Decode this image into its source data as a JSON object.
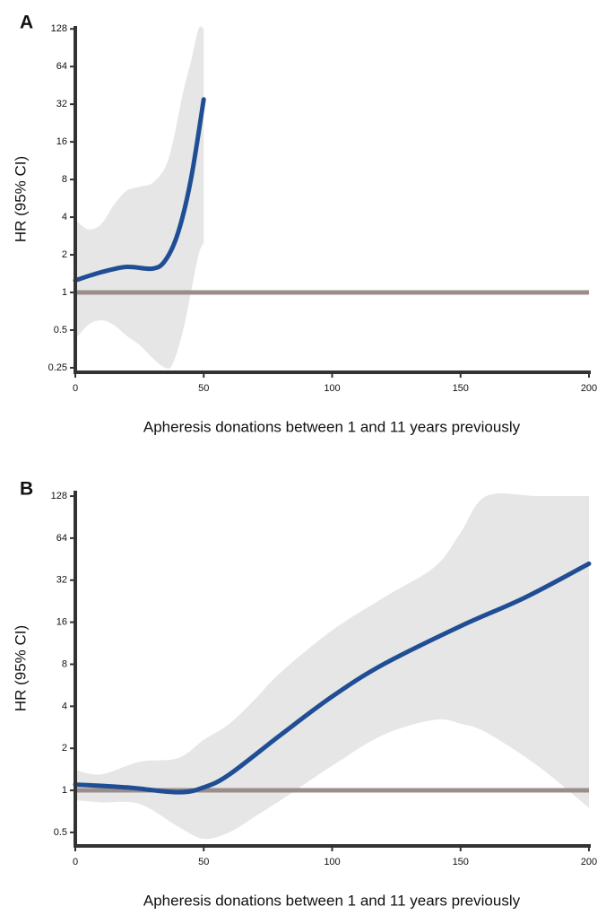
{
  "chart_data": [
    {
      "type": "line",
      "panel": "A",
      "x_label": "Apheresis donations between 1 and 11 years previously",
      "y_label": "HR (95% CI)",
      "log_y": true,
      "color": "#1f4e94",
      "band_color": "#e6e6e6",
      "reference_line": 1,
      "reference_color": "#9b8d8b",
      "xlim": [
        0,
        200
      ],
      "xticks": [
        0,
        50,
        100,
        150,
        200
      ],
      "ylim": [
        0.23,
        135
      ],
      "yticks": [
        0.25,
        0.5,
        1,
        2,
        4,
        8,
        16,
        32,
        64,
        128
      ],
      "x": [
        0,
        10,
        20,
        30,
        35,
        40,
        45,
        50
      ],
      "values": [
        1.25,
        1.45,
        1.6,
        1.55,
        1.8,
        3,
        8,
        35
      ],
      "ci": {
        "x": [
          0,
          5,
          10,
          15,
          20,
          25,
          30,
          35,
          38,
          42,
          45,
          48,
          50
        ],
        "lower": [
          0.42,
          0.55,
          0.6,
          0.55,
          0.45,
          0.38,
          0.3,
          0.25,
          0.27,
          0.5,
          1,
          2,
          2.5
        ],
        "upper": [
          3.8,
          3.2,
          3.5,
          5,
          6.5,
          7,
          7.5,
          10,
          16,
          40,
          70,
          128,
          128
        ]
      }
    },
    {
      "type": "line",
      "panel": "B",
      "x_label": "Apheresis donations between 1 and 11 years previously",
      "y_label": "HR (95% CI)",
      "log_y": true,
      "color": "#1f4e94",
      "band_color": "#e6e6e6",
      "reference_line": 1,
      "reference_color": "#9b8d8b",
      "xlim": [
        0,
        200
      ],
      "xticks": [
        0,
        50,
        100,
        150,
        200
      ],
      "ylim": [
        0.4,
        140
      ],
      "yticks": [
        0.5,
        1,
        2,
        4,
        8,
        16,
        32,
        64,
        128
      ],
      "x": [
        0,
        20,
        40,
        50,
        60,
        80,
        100,
        120,
        150,
        175,
        200
      ],
      "values": [
        1.1,
        1.05,
        0.97,
        1.05,
        1.3,
        2.5,
        4.7,
        8,
        15,
        24,
        42
      ],
      "ci": {
        "x": [
          0,
          10,
          25,
          40,
          50,
          60,
          70,
          80,
          100,
          120,
          140,
          150,
          160,
          180,
          200
        ],
        "lower": [
          0.85,
          0.82,
          0.8,
          0.55,
          0.45,
          0.5,
          0.65,
          0.85,
          1.5,
          2.5,
          3.2,
          3,
          2.6,
          1.5,
          0.75
        ],
        "upper": [
          1.4,
          1.3,
          1.6,
          1.7,
          2.3,
          3,
          4.5,
          7,
          14,
          24,
          40,
          70,
          128,
          128,
          128
        ]
      }
    }
  ]
}
